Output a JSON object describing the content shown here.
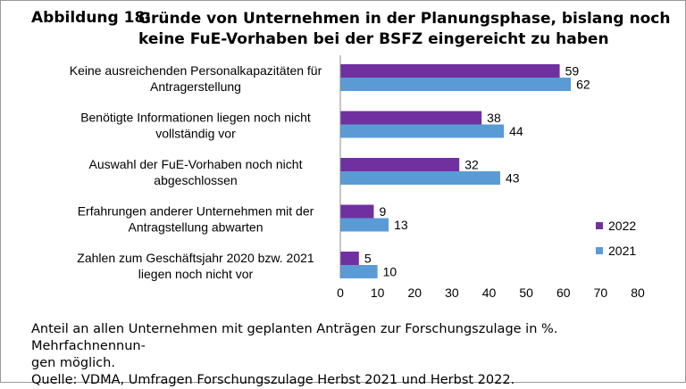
{
  "figure": {
    "label": "Abbildung 18:",
    "title": "Gründe von Unternehmen in der Planungsphase, bislang noch keine FuE-Vorhaben bei der BSFZ eingereicht zu haben",
    "footnote_line1": "Anteil an allen Unternehmen mit geplanten Anträgen zur Forschungszulage in %. Mehrfachnennun-",
    "footnote_line2": "gen möglich.",
    "source": "Quelle: VDMA, Umfragen Forschungszulage Herbst 2021 und Herbst 2022."
  },
  "chart_data": {
    "type": "bar",
    "orientation": "horizontal",
    "categories": [
      [
        "Keine ausreichenden Personalkapazitäten für",
        "Antragerstellung"
      ],
      [
        "Benötigte Informationen liegen noch nicht",
        "vollständig vor"
      ],
      [
        "Auswahl der FuE-Vorhaben noch nicht",
        "abgeschlossen"
      ],
      [
        "Erfahrungen anderer Unternehmen mit der",
        "Antragstellung abwarten"
      ],
      [
        "Zahlen zum Geschäftsjahr 2020 bzw. 2021",
        "liegen noch nicht vor"
      ]
    ],
    "series": [
      {
        "name": "2022",
        "color": "#7030A0",
        "values": [
          59,
          38,
          32,
          9,
          5
        ]
      },
      {
        "name": "2021",
        "color": "#5B9BD5",
        "values": [
          62,
          44,
          43,
          13,
          10
        ]
      }
    ],
    "xlim": [
      0,
      80
    ],
    "xticks": [
      0,
      10,
      20,
      30,
      40,
      50,
      60,
      70,
      80
    ],
    "grid": false,
    "data_labels": true,
    "legend_position": "right"
  }
}
